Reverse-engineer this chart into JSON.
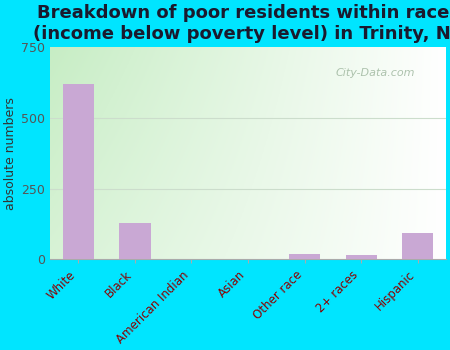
{
  "title": "Breakdown of poor residents within races\n(income below poverty level) in Trinity, NC",
  "categories": [
    "White",
    "Black",
    "American Indian",
    "Asian",
    "Other race",
    "2+ races",
    "Hispanic"
  ],
  "values": [
    620,
    130,
    0,
    0,
    18,
    15,
    95
  ],
  "bar_color": "#c9a8d4",
  "ylabel": "absolute numbers",
  "ylim": [
    0,
    750
  ],
  "yticks": [
    0,
    250,
    500,
    750
  ],
  "background_outer": "#00e5ff",
  "bg_left": "#c8e8c0",
  "bg_right": "#f5fff5",
  "bg_top": "#e8f8e0",
  "bg_bottom": "#ffffff",
  "title_fontsize": 13,
  "title_color": "#1a1a2e",
  "watermark": "City-Data.com",
  "tick_label_color": "#8B0000",
  "ytick_color": "#555555",
  "grid_color": "#ccddcc",
  "bar_width": 0.55
}
